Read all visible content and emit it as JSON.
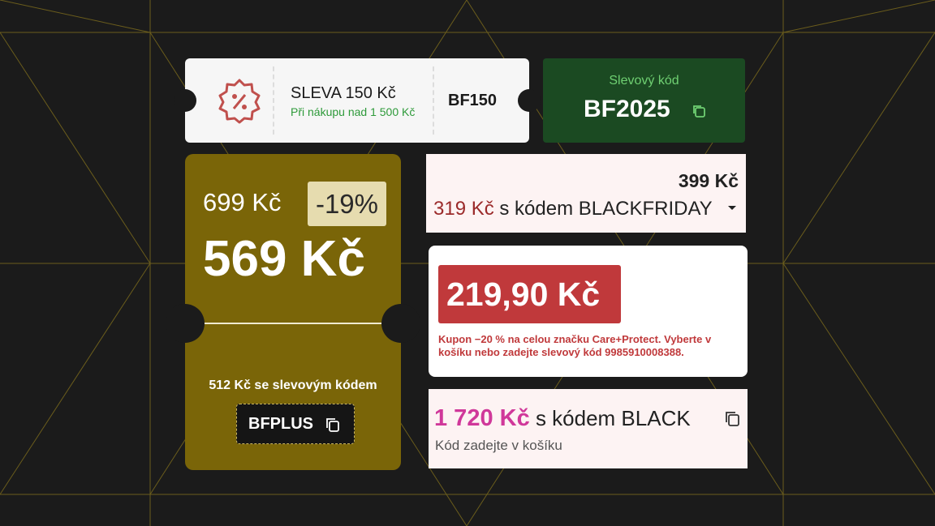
{
  "coupon_ticket": {
    "title": "SLEVA 150 Kč",
    "subtitle": "Při nákupu nad 1 500 Kč",
    "code": "BF150"
  },
  "code_box": {
    "label": "Slevový kód",
    "code": "BF2025"
  },
  "price_ticket": {
    "old_price": "699 Kč",
    "discount": "-19%",
    "price": "569 Kč",
    "code_price": "512",
    "code_note": " Kč se slevovým kódem",
    "code": "BFPLUS"
  },
  "price_dropdown": {
    "price": "399 Kč",
    "code_price": "319 Kč",
    "code_note": " s kódem BLACKFRIDAY"
  },
  "red_price": {
    "price": "219,90 Kč",
    "note": "Kupon −20 % na celou značku Care+Protect. Vyberte v košíku nebo zadejte slevový kód 9985910008388."
  },
  "pink_price": {
    "price": "1 720 Kč",
    "code_note": "s kódem BLACK",
    "hint": "Kód zadejte v košíku"
  }
}
